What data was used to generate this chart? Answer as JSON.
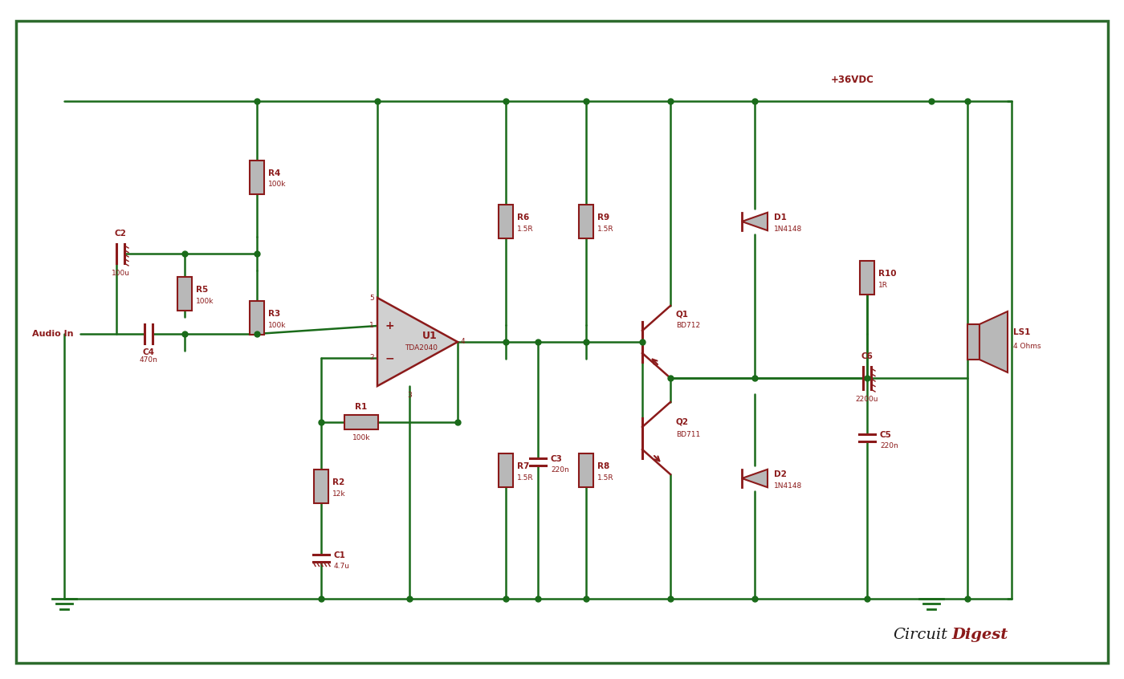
{
  "bg_color": "#ffffff",
  "border_color": "#2d6b2d",
  "wire_color": "#1a6b1a",
  "comp_color": "#8b1a1a",
  "comp_fill": "#b8b8b8",
  "supply_label": "+36VDC",
  "audio_in_label": "Audio In",
  "title": "CircuitDigest"
}
